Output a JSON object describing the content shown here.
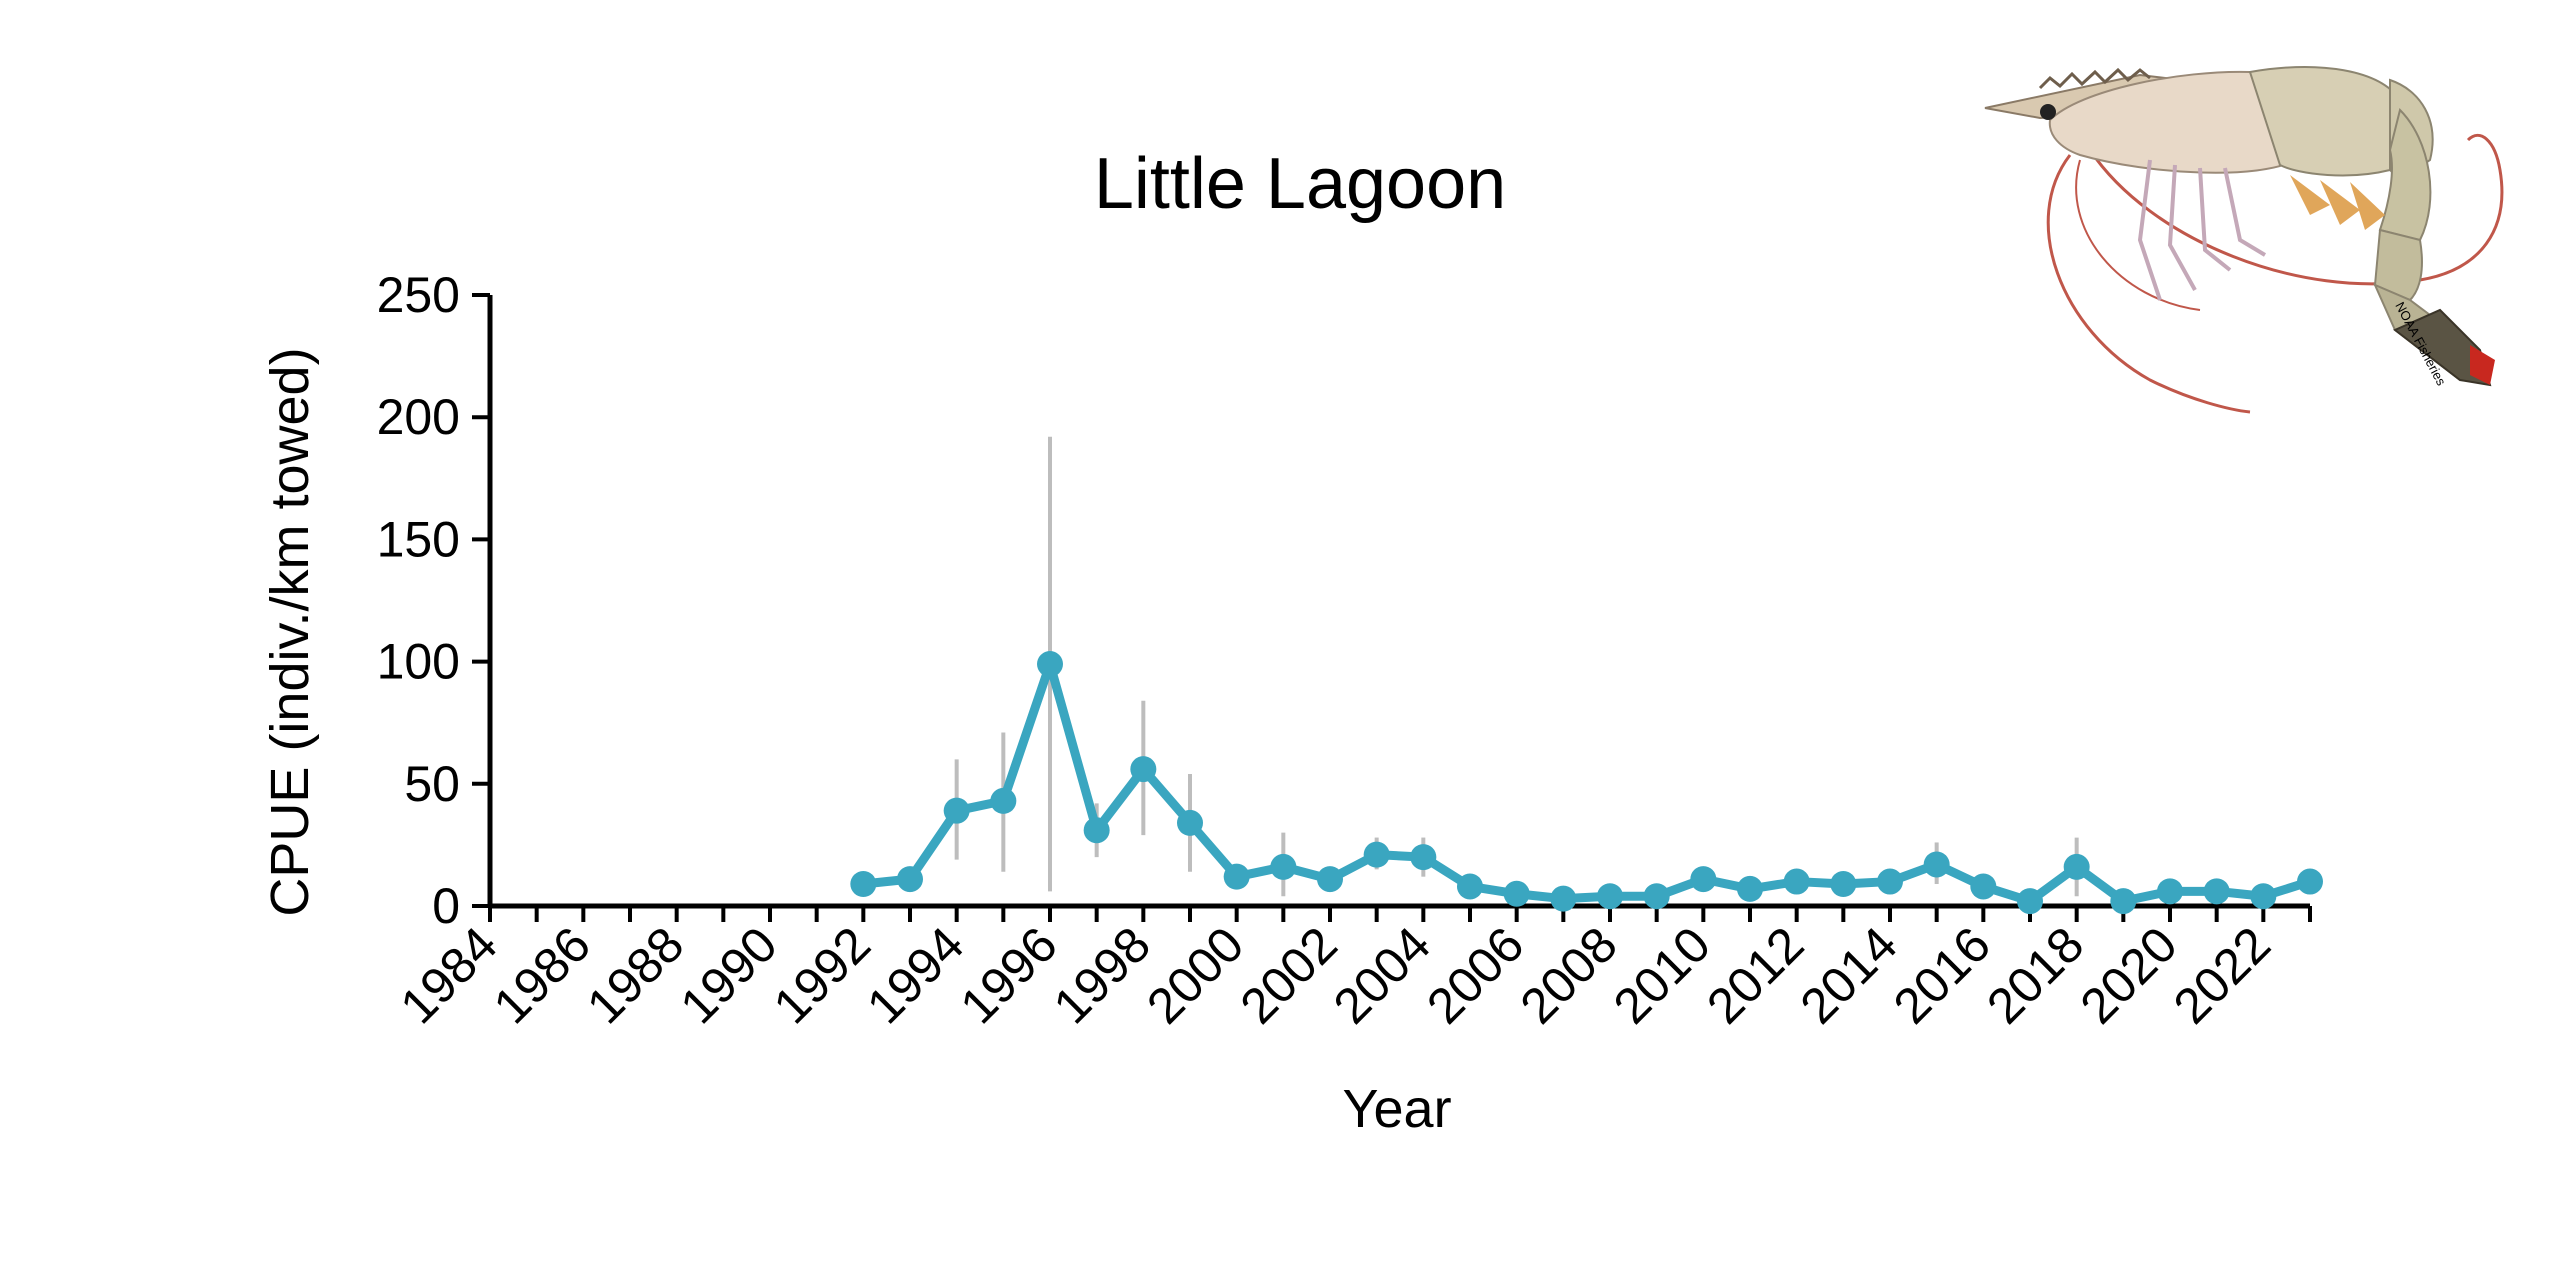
{
  "chart_data": {
    "type": "line",
    "title": "Little Lagoon",
    "xlabel": "Year",
    "ylabel": "CPUE (indiv./km towed)",
    "xlim": [
      1984,
      2023
    ],
    "ylim": [
      0,
      250
    ],
    "x_ticks": [
      "1984",
      "1986",
      "1988",
      "1990",
      "1992",
      "1994",
      "1996",
      "1998",
      "2000",
      "2002",
      "2004",
      "2006",
      "2008",
      "2010",
      "2012",
      "2014",
      "2016",
      "2018",
      "2020",
      "2022"
    ],
    "y_ticks": [
      "0",
      "50",
      "100",
      "150",
      "200",
      "250"
    ],
    "grid": false,
    "legend": "none",
    "series_color": "#3aa6c0",
    "error_bar_color": "#bdbdbd",
    "series": [
      {
        "x": [
          1992,
          1993,
          1994,
          1995,
          1996,
          1997,
          1998,
          1999,
          2000,
          2001,
          2002,
          2003,
          2004,
          2005,
          2006,
          2007,
          2008,
          2009,
          2010,
          2011,
          2012,
          2013,
          2014,
          2015,
          2016,
          2017,
          2018,
          2019,
          2020,
          2021,
          2022,
          2023
        ],
        "y": [
          9,
          11,
          39,
          43,
          99,
          31,
          56,
          34,
          12,
          16,
          11,
          21,
          20,
          8,
          5,
          3,
          4,
          4,
          11,
          7,
          10,
          9,
          10,
          17,
          8,
          2,
          16,
          2,
          6,
          6,
          4,
          10
        ],
        "error_low": [
          null,
          null,
          19,
          14,
          6,
          20,
          29,
          14,
          null,
          4,
          null,
          15,
          12,
          null,
          null,
          null,
          null,
          null,
          null,
          null,
          null,
          null,
          null,
          9,
          null,
          null,
          4,
          null,
          null,
          null,
          null,
          null
        ],
        "error_high": [
          null,
          null,
          60,
          71,
          192,
          42,
          84,
          54,
          null,
          30,
          null,
          28,
          28,
          null,
          null,
          null,
          null,
          null,
          null,
          null,
          null,
          null,
          null,
          26,
          null,
          null,
          28,
          null,
          null,
          null,
          null,
          null
        ]
      }
    ]
  },
  "logo": {
    "icon": "shrimp-icon",
    "caption": "NOAA Fisheries"
  }
}
